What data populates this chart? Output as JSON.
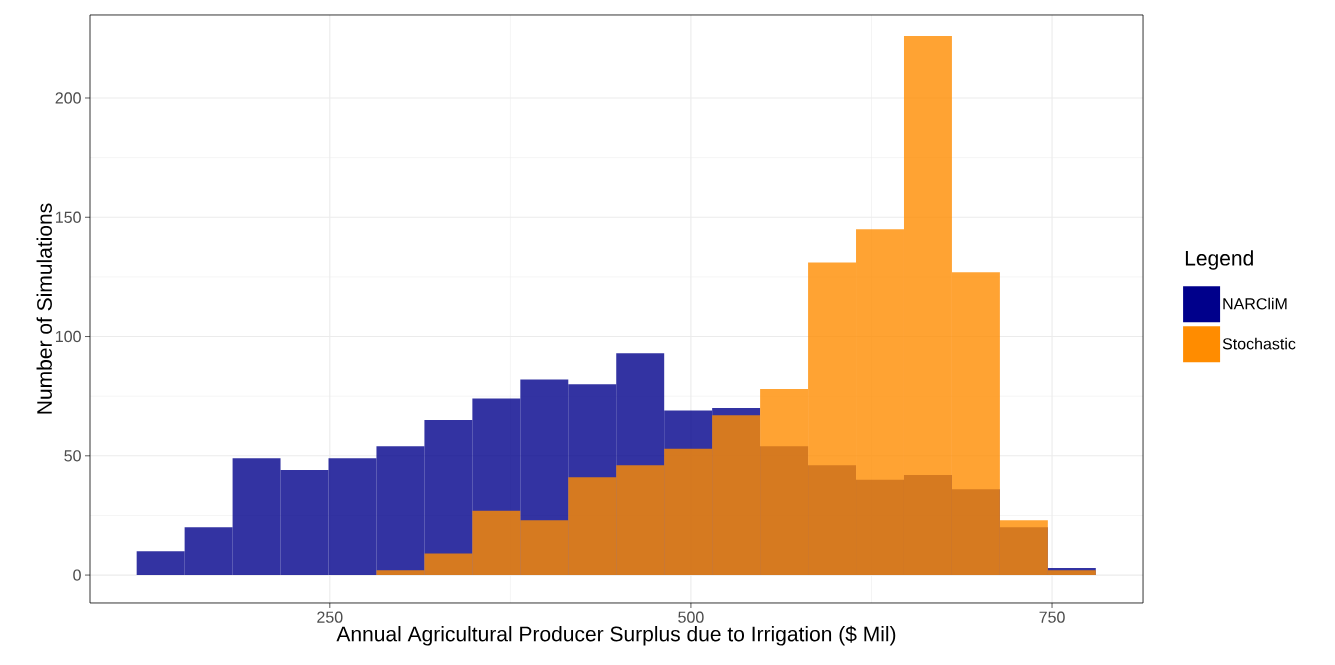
{
  "chart_data": {
    "type": "histogram",
    "xlabel": "Annual Agricultural Producer Surplus due to Irrigation ($ Mil)",
    "ylabel": "Number of Simulations",
    "legend_title": "Legend",
    "bins": [
      116.3,
      149.5,
      182.7,
      215.9,
      249.1,
      282.3,
      315.5,
      348.7,
      381.9,
      415.1,
      448.3,
      481.5,
      514.7,
      547.9,
      581.1,
      614.3,
      647.5,
      680.7,
      713.9,
      747.1,
      780.3
    ],
    "series": [
      {
        "name": "NARCliM",
        "color": "#00008b",
        "values": [
          10,
          20,
          49,
          44,
          49,
          54,
          65,
          74,
          82,
          80,
          93,
          69,
          70,
          54,
          46,
          40,
          42,
          36,
          20,
          3
        ]
      },
      {
        "name": "Stochastic",
        "color": "#ff8c00",
        "values": [
          0,
          0,
          0,
          0,
          0,
          2,
          9,
          27,
          23,
          41,
          46,
          53,
          67,
          78,
          131,
          145,
          226,
          127,
          23,
          2
        ]
      }
    ],
    "xlim": [
      84,
      813
    ],
    "ylim": [
      -11.7,
      234.8
    ],
    "xticks": [
      250,
      500,
      750
    ],
    "yticks": [
      0,
      50,
      100,
      150,
      200
    ],
    "grid": true,
    "legend": "right"
  }
}
